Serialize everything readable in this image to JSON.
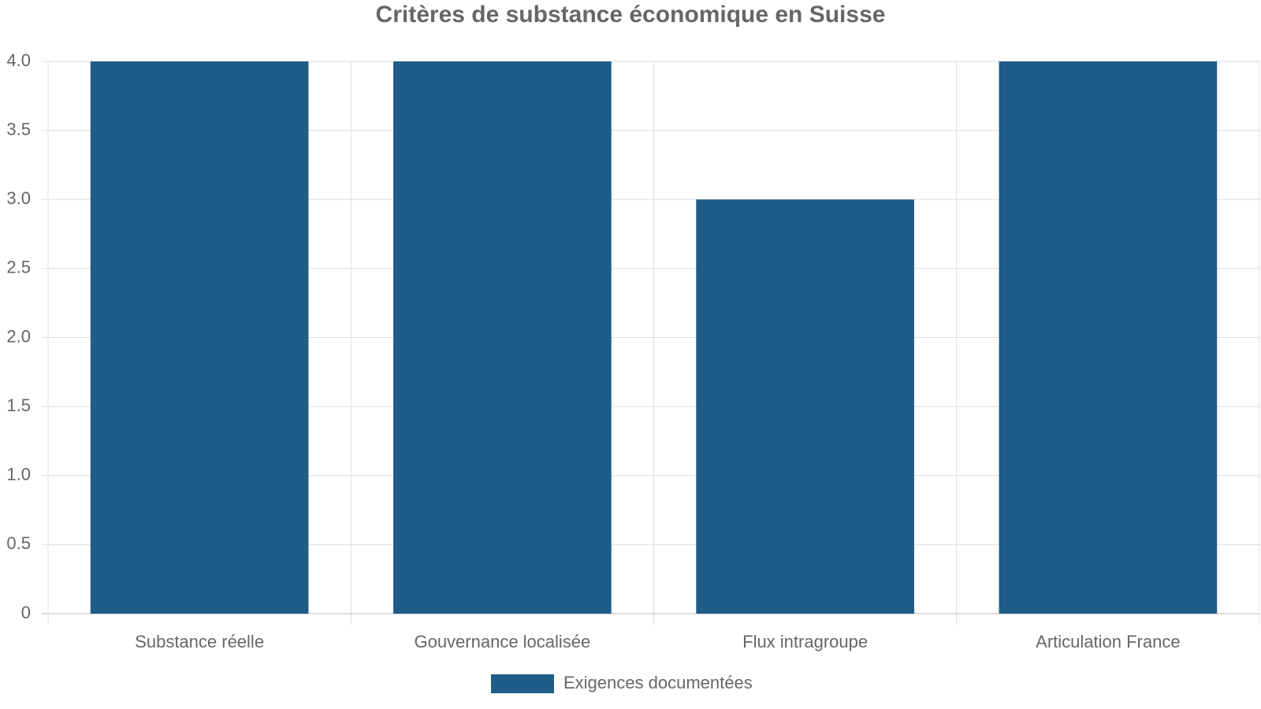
{
  "chart_data": {
    "type": "bar",
    "title": "Critères de substance économique en Suisse",
    "categories": [
      "Substance réelle",
      "Gouvernance localisée",
      "Flux intragroupe",
      "Articulation France"
    ],
    "series": [
      {
        "name": "Exigences documentées",
        "color": "#1f5c87",
        "values": [
          4,
          4,
          3,
          4
        ]
      }
    ],
    "ylim": [
      0,
      4
    ],
    "yticks": [
      0,
      0.5,
      {
        "value": 1,
        "label": "1.0"
      },
      1.5,
      {
        "value": 2,
        "label": "2.0"
      },
      2.5,
      {
        "value": 3,
        "label": "3.0"
      },
      3.5,
      {
        "value": 4,
        "label": "4.0"
      }
    ],
    "grid": true,
    "legend": "bottom"
  }
}
